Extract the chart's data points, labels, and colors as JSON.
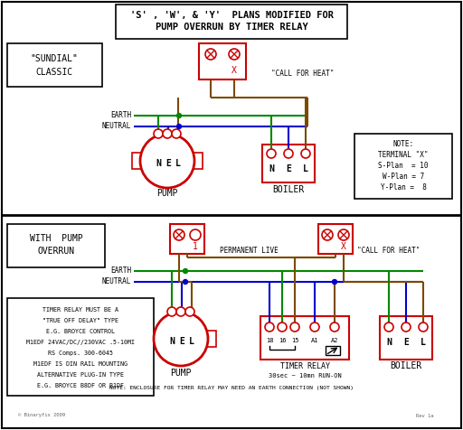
{
  "bg_color": "#ffffff",
  "red": "#cc0000",
  "green": "#008800",
  "blue": "#0000cc",
  "brown": "#7B4A00",
  "black": "#000000",
  "gray": "#666666",
  "title1": "'S' , 'W', & 'Y'  PLANS MODIFIED FOR",
  "title2": "PUMP OVERRUN BY TIMER RELAY",
  "notes_lines": [
    "TIMER RELAY MUST BE A",
    "\"TRUE OFF DELAY\" TYPE",
    "E.G. BROYCE CONTROL",
    "M1EDF 24VAC/DC//230VAC .5-10MI",
    "RS Comps. 300-6045",
    "M1EDF IS DIN RAIL MOUNTING",
    "ALTERNATIVE PLUG-IN TYPE",
    "E.G. BROYCE B8DF OR B1DF"
  ],
  "note_terminal": [
    "NOTE:",
    "TERMINAL \"X\"",
    "S-Plan  = 10",
    "W-Plan = 7",
    "Y-Plan =  8"
  ],
  "bottom_note": "NOTE: ENCLOSURE FOR TIMER RELAY MAY NEED AN EARTH CONNECTION (NOT SHOWN)"
}
